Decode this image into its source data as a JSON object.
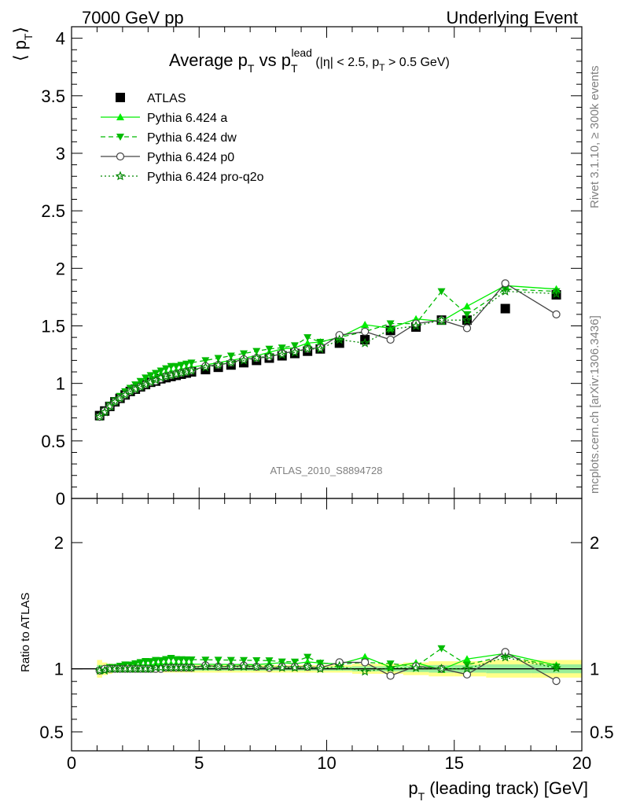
{
  "header": {
    "left": "7000 GeV pp",
    "right": "Underlying Event"
  },
  "side": {
    "rivet": "Rivet 3.1.10, ≥ 300k events",
    "mcplots": "mcplots.cern.ch [arXiv:1306.3436]"
  },
  "analysis_tag": "ATLAS_2010_S8894728",
  "chart_data": [
    {
      "type": "line",
      "title": {
        "main": "Average p",
        "sub1": "T",
        "mid": " vs p",
        "sub2": "T",
        "sup2": "lead",
        "cuts_a": " (|η| < 2.5, p",
        "cuts_sub": "T",
        "cuts_b": " > 0.5 GeV)"
      },
      "ylabel": {
        "left": "⟨ p",
        "sub": "T",
        "right": "⟩"
      },
      "ylim": [
        0,
        4.1
      ],
      "xlim": [
        0,
        20
      ],
      "yticks": [
        "0",
        "0.5",
        "1",
        "1.5",
        "2",
        "2.5",
        "3",
        "3.5",
        "4"
      ],
      "legend_position": "top-left",
      "x": [
        1.1,
        1.3,
        1.5,
        1.7,
        1.9,
        2.1,
        2.3,
        2.5,
        2.7,
        2.9,
        3.1,
        3.3,
        3.5,
        3.7,
        3.9,
        4.1,
        4.3,
        4.5,
        4.7,
        5.25,
        5.75,
        6.25,
        6.75,
        7.25,
        7.75,
        8.25,
        8.75,
        9.25,
        9.75,
        10.5,
        11.5,
        12.5,
        13.5,
        14.5,
        15.5,
        17,
        19
      ],
      "series": [
        {
          "name": "ATLAS",
          "color": "#000000",
          "marker": "square",
          "values": [
            0.72,
            0.76,
            0.8,
            0.84,
            0.87,
            0.9,
            0.93,
            0.95,
            0.97,
            0.99,
            1.01,
            1.02,
            1.04,
            1.05,
            1.06,
            1.07,
            1.08,
            1.09,
            1.1,
            1.12,
            1.14,
            1.16,
            1.18,
            1.2,
            1.22,
            1.24,
            1.26,
            1.28,
            1.3,
            1.35,
            1.38,
            1.46,
            1.49,
            1.55,
            1.55,
            1.65,
            1.77
          ]
        },
        {
          "name": "Pythia 6.424 a",
          "color": "#00ee00",
          "marker": "triangle-up",
          "dash": "",
          "values": [
            0.72,
            0.76,
            0.8,
            0.85,
            0.88,
            0.92,
            0.95,
            0.98,
            1.0,
            1.02,
            1.04,
            1.06,
            1.08,
            1.09,
            1.1,
            1.11,
            1.12,
            1.13,
            1.14,
            1.16,
            1.18,
            1.2,
            1.22,
            1.24,
            1.27,
            1.3,
            1.31,
            1.35,
            1.36,
            1.4,
            1.51,
            1.48,
            1.56,
            1.54,
            1.67,
            1.85,
            1.82
          ]
        },
        {
          "name": "Pythia 6.424 dw",
          "color": "#00bb00",
          "marker": "triangle-down",
          "dash": "6,4",
          "values": [
            0.71,
            0.76,
            0.81,
            0.85,
            0.89,
            0.93,
            0.96,
            0.99,
            1.02,
            1.05,
            1.07,
            1.09,
            1.11,
            1.13,
            1.15,
            1.15,
            1.16,
            1.17,
            1.18,
            1.2,
            1.22,
            1.24,
            1.26,
            1.28,
            1.3,
            1.31,
            1.33,
            1.4,
            1.36,
            1.4,
            1.45,
            1.52,
            1.52,
            1.8,
            1.6,
            1.82,
            1.8
          ]
        },
        {
          "name": "Pythia 6.424 p0",
          "color": "#444444",
          "marker": "circle-open",
          "dash": "",
          "values": [
            0.71,
            0.76,
            0.8,
            0.84,
            0.87,
            0.9,
            0.93,
            0.95,
            0.97,
            0.99,
            1.01,
            1.02,
            1.04,
            1.06,
            1.07,
            1.08,
            1.09,
            1.1,
            1.11,
            1.15,
            1.16,
            1.18,
            1.21,
            1.22,
            1.23,
            1.26,
            1.28,
            1.3,
            1.31,
            1.42,
            1.45,
            1.38,
            1.52,
            1.55,
            1.48,
            1.87,
            1.6
          ]
        },
        {
          "name": "Pythia 6.424 pro-q2o",
          "color": "#008800",
          "marker": "star",
          "dash": "2,3",
          "values": [
            0.71,
            0.75,
            0.8,
            0.84,
            0.87,
            0.9,
            0.93,
            0.95,
            0.97,
            0.99,
            1.01,
            1.03,
            1.05,
            1.06,
            1.07,
            1.08,
            1.09,
            1.1,
            1.11,
            1.14,
            1.16,
            1.18,
            1.2,
            1.22,
            1.24,
            1.25,
            1.27,
            1.3,
            1.3,
            1.38,
            1.35,
            1.47,
            1.5,
            1.55,
            1.55,
            1.8,
            1.78
          ]
        }
      ]
    },
    {
      "type": "line",
      "ylabel": "Ratio to ATLAS",
      "ylim": [
        0.35,
        2.35
      ],
      "xlim": [
        0,
        20
      ],
      "xlabel": {
        "p": "p",
        "sub": "T",
        "rest": " (leading track) [GeV]"
      },
      "xticks": [
        "0",
        "5",
        "10",
        "15",
        "20"
      ],
      "yticks_left": [
        "0.5",
        "1",
        "2"
      ],
      "yticks_right": [
        "0.5",
        "1",
        "2"
      ],
      "band_halfwidth_yellow": [
        0.07,
        0.05,
        0.04,
        0.03,
        0.03,
        0.03,
        0.03,
        0.03,
        0.03,
        0.03,
        0.03,
        0.03,
        0.03,
        0.03,
        0.03,
        0.03,
        0.03,
        0.03,
        0.03,
        0.03,
        0.03,
        0.03,
        0.03,
        0.03,
        0.03,
        0.03,
        0.03,
        0.03,
        0.03,
        0.03,
        0.04,
        0.04,
        0.05,
        0.06,
        0.06,
        0.07,
        0.07
      ],
      "band_halfwidth_green": [
        0.03,
        0.02,
        0.02,
        0.015,
        0.015,
        0.015,
        0.015,
        0.015,
        0.015,
        0.015,
        0.015,
        0.015,
        0.015,
        0.015,
        0.015,
        0.015,
        0.015,
        0.015,
        0.015,
        0.015,
        0.015,
        0.015,
        0.015,
        0.015,
        0.015,
        0.015,
        0.015,
        0.015,
        0.015,
        0.015,
        0.02,
        0.02,
        0.025,
        0.03,
        0.03,
        0.035,
        0.035
      ]
    }
  ]
}
